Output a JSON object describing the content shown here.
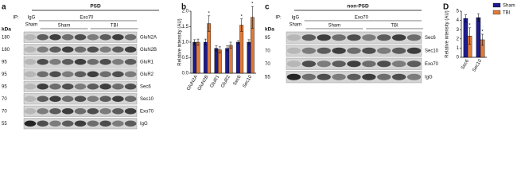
{
  "blots": [
    {
      "label": "a",
      "fraction": "PSD",
      "ip": "IP:",
      "control": "IgG",
      "control_group": "Sham",
      "target": "Exo70",
      "groups": [
        "Sham",
        "TBI"
      ],
      "unit": "kDa",
      "markers": [
        180,
        180,
        95,
        95,
        95,
        70,
        70,
        55
      ],
      "proteins": [
        "GluN2A",
        "GluN2B",
        "GluR1",
        "GluR2",
        "Sec6",
        "Sec10",
        "Exo70",
        "IgG"
      ]
    },
    {
      "label": "c",
      "fraction": "non-PSD",
      "ip": "IP:",
      "control": "IgG",
      "control_group": "Sham",
      "target": "Exo70",
      "groups": [
        "Sham",
        "TBI"
      ],
      "unit": "kDa",
      "markers": [
        95,
        70,
        70,
        55
      ],
      "proteins": [
        "Sec6",
        "Sec10",
        "Exo70",
        "IgG"
      ]
    }
  ],
  "chart_data": [
    {
      "type": "bar",
      "title": "b",
      "ylabel": "Relative intensity (AU)",
      "categories": [
        "GluN2A",
        "GluN2B",
        "GluR1",
        "GluR2",
        "Sec6",
        "Sec10"
      ],
      "series": [
        {
          "name": "Sham",
          "color": "#1c1c8c",
          "values": [
            1.0,
            1.0,
            0.8,
            0.8,
            1.0,
            1.0
          ],
          "errors": [
            0.08,
            0.1,
            0.08,
            0.08,
            0.05,
            0.08
          ]
        },
        {
          "name": "TBI",
          "color": "#e07b39",
          "values": [
            1.0,
            1.6,
            0.75,
            0.9,
            1.55,
            1.8
          ],
          "errors": [
            0.1,
            0.25,
            0.1,
            0.1,
            0.2,
            0.35
          ]
        }
      ],
      "annotations": [
        {
          "text": "*",
          "category": "GluN2B",
          "series": "TBI"
        },
        {
          "text": "*",
          "category": "Sec6",
          "series": "TBI"
        },
        {
          "text": "*",
          "category": "Sec10",
          "series": "TBI"
        }
      ],
      "ylim": [
        0,
        2
      ],
      "yticks": [
        {
          "value": 0,
          "label": "0.0"
        },
        0.5,
        {
          "value": 1,
          "label": "1.0"
        },
        1.5,
        {
          "value": 2,
          "label": "2.0"
        }
      ],
      "legend": false
    },
    {
      "type": "bar",
      "title": "D",
      "ylabel": "Relative intensity (AU)",
      "categories": [
        "Sec6",
        "Sec10"
      ],
      "series": [
        {
          "name": "Sham",
          "color": "#1c1c8c",
          "values": [
            4.2,
            4.3
          ],
          "errors": [
            0.4,
            0.4
          ]
        },
        {
          "name": "TBI",
          "color": "#e07b39",
          "values": [
            2.3,
            1.9
          ],
          "errors": [
            0.9,
            0.6
          ]
        }
      ],
      "annotations": [
        {
          "text": "*",
          "category": "Sec6",
          "series": "TBI"
        },
        {
          "text": "*",
          "category": "Sec10",
          "series": "TBI"
        }
      ],
      "ylim": [
        0,
        5
      ],
      "yticks": [
        0,
        1,
        2,
        3,
        4,
        5
      ],
      "legend": true
    }
  ]
}
